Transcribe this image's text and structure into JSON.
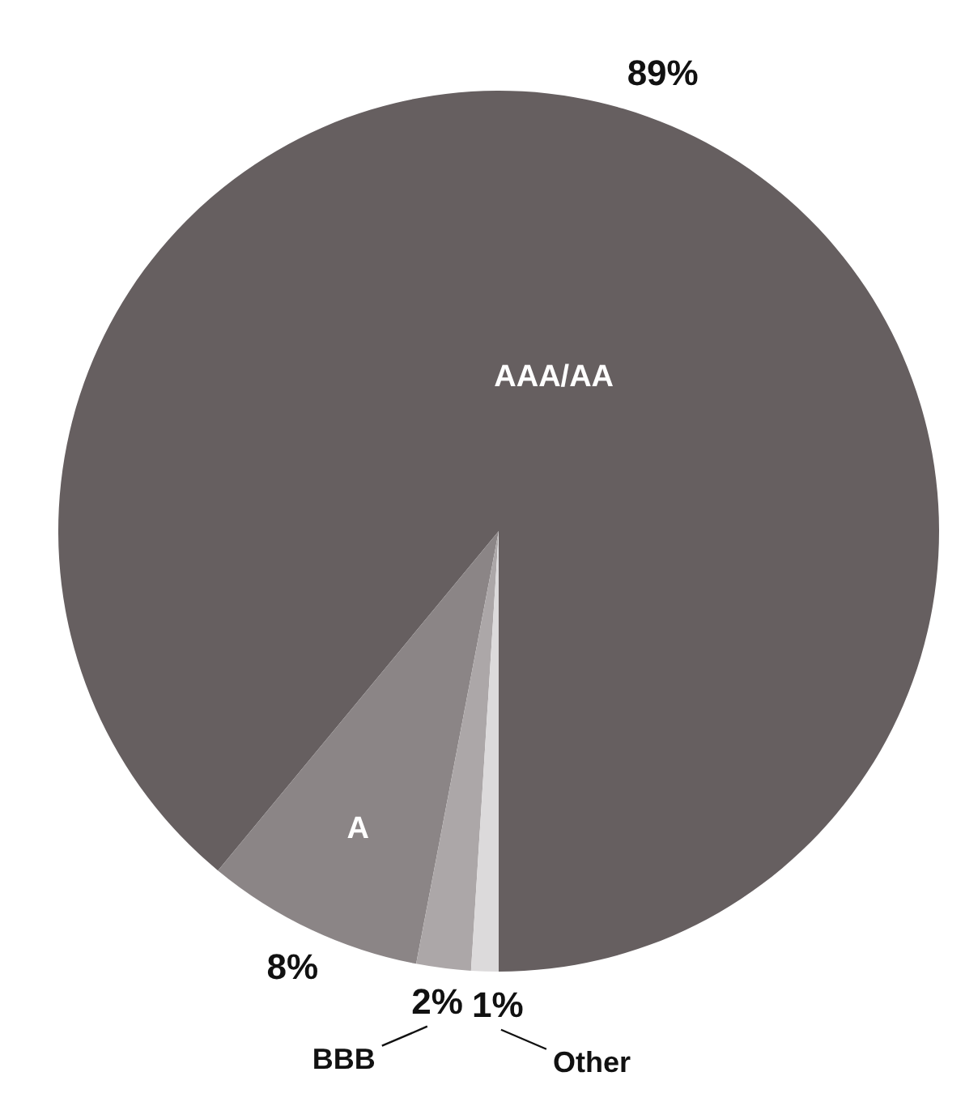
{
  "chart_data": {
    "type": "pie",
    "categories": [
      "AAA/AA",
      "A",
      "BBB",
      "Other"
    ],
    "values": [
      89,
      8,
      2,
      1
    ],
    "value_labels": [
      "89%",
      "8%",
      "2%",
      "1%"
    ],
    "colors": [
      "#665f60",
      "#8b8586",
      "#aca7a8",
      "#dcdadb"
    ]
  }
}
